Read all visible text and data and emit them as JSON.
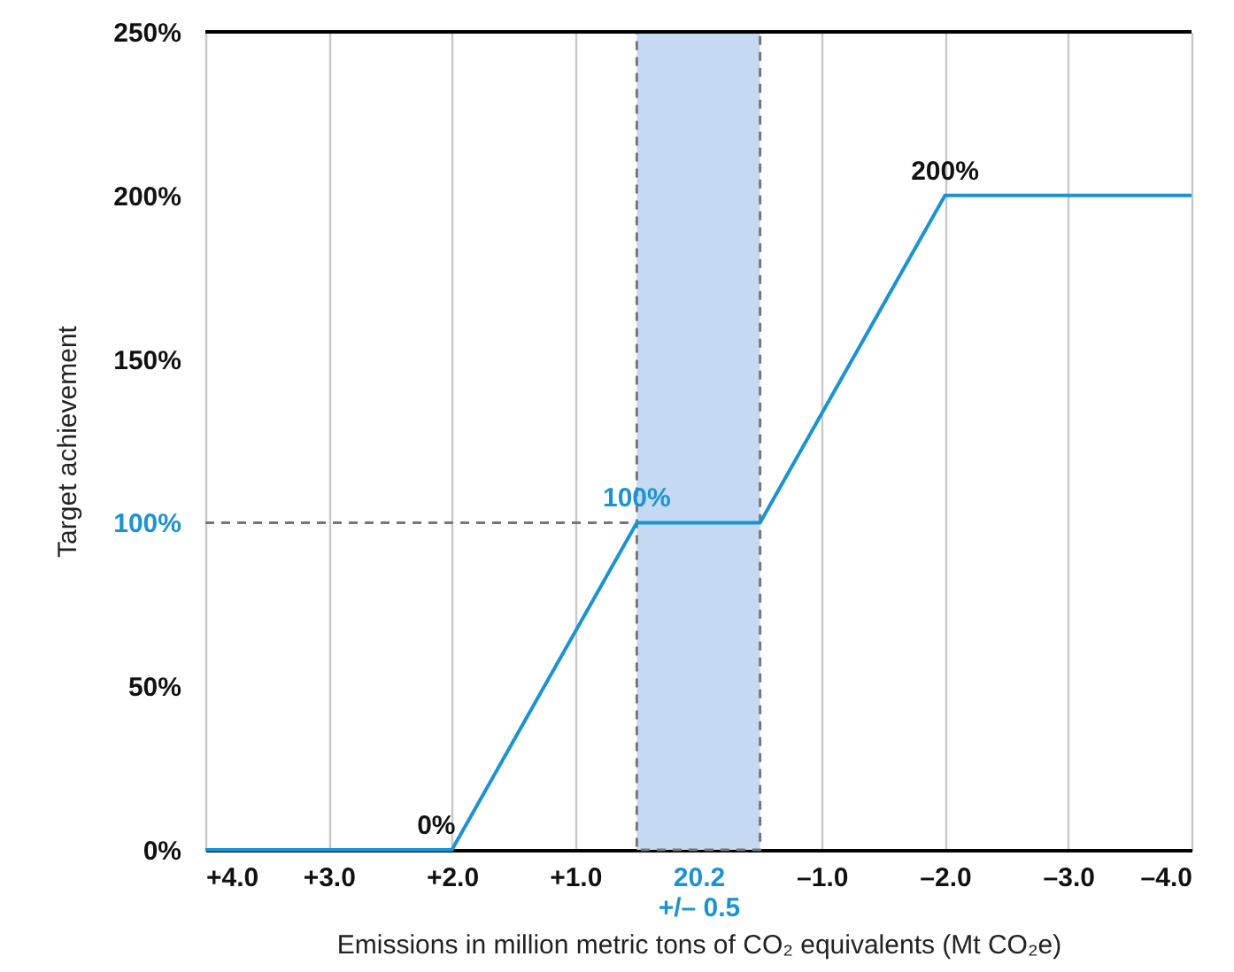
{
  "chart_data": {
    "type": "line",
    "xlabel": "Emissions in million metric tons of CO₂ equivalents (Mt CO₂e)",
    "ylabel": "Target achievement",
    "x": [
      4,
      2,
      0.5,
      -0.5,
      -2,
      -4
    ],
    "series": [
      {
        "color": "#1b93d2",
        "values": [
          0,
          0,
          100,
          100,
          200,
          200
        ],
        "value_labels": [
          null,
          "0%",
          "100%",
          null,
          "200%",
          null
        ]
      }
    ],
    "xlim": [
      4,
      -4
    ],
    "xticks": [
      {
        "value": 4,
        "label": "+4.0"
      },
      {
        "value": 3,
        "label": "+3.0"
      },
      {
        "value": 2,
        "label": "+2.0"
      },
      {
        "value": 1,
        "label": "+1.0"
      },
      {
        "value": 0,
        "label": "20.2\n+/– 0.5"
      },
      {
        "value": -1,
        "label": "–1.0"
      },
      {
        "value": -2,
        "label": "–2.0"
      },
      {
        "value": -3,
        "label": "–3.0"
      },
      {
        "value": -4,
        "label": "–4.0"
      }
    ],
    "ylim": [
      0,
      250
    ],
    "yticks": [
      {
        "value": 0,
        "label": "0%"
      },
      {
        "value": 50,
        "label": "50%"
      },
      {
        "value": 100,
        "label": "100%"
      },
      {
        "value": 150,
        "label": "150%"
      },
      {
        "value": 200,
        "label": "200%"
      },
      {
        "value": 250,
        "label": "250%"
      }
    ],
    "bands": [
      {
        "axis": "x",
        "from": 0.5,
        "to": -0.5,
        "color": "#c5daf2"
      }
    ],
    "ref_lines": [
      {
        "axis": "y",
        "value": 100,
        "color": "#777777",
        "line_style": "dashed"
      },
      {
        "axis": "y",
        "value": 250,
        "color": "#000000",
        "line_style": "solid"
      }
    ],
    "grid": "x",
    "marker": "none",
    "line_style": "solid"
  }
}
